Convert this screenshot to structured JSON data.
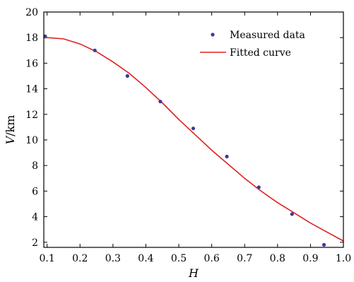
{
  "chart_data": {
    "type": "scatter",
    "xlabel_var": "H",
    "ylabel_var": "V",
    "ylabel_unit": "/km",
    "xlim": [
      0.09,
      1.0
    ],
    "ylim": [
      1.6,
      20
    ],
    "xticks": [
      0.1,
      0.2,
      0.3,
      0.4,
      0.5,
      0.6,
      0.7,
      0.8,
      0.9,
      1.0
    ],
    "xtick_labels": [
      "0.1",
      "0.2",
      "0.3",
      "0.4",
      "0.5",
      "0.6",
      "0.7",
      "0.8",
      "0.9",
      "1.0"
    ],
    "yticks": [
      2,
      4,
      6,
      8,
      10,
      12,
      14,
      16,
      18,
      20
    ],
    "ytick_labels": [
      "2",
      "4",
      "6",
      "8",
      "10",
      "12",
      "14",
      "16",
      "18",
      "20"
    ],
    "grid": false,
    "legend_position": "top-right",
    "series": [
      {
        "name": "Measured data",
        "kind": "scatter",
        "color": "#3b3b9a",
        "points": [
          {
            "x": 0.094,
            "y": 18.1
          },
          {
            "x": 0.245,
            "y": 17.0
          },
          {
            "x": 0.344,
            "y": 15.0
          },
          {
            "x": 0.444,
            "y": 13.0
          },
          {
            "x": 0.544,
            "y": 10.9
          },
          {
            "x": 0.646,
            "y": 8.7
          },
          {
            "x": 0.743,
            "y": 6.3
          },
          {
            "x": 0.844,
            "y": 4.2
          },
          {
            "x": 0.941,
            "y": 1.8
          }
        ]
      },
      {
        "name": "Fitted curve",
        "kind": "line",
        "color": "#e02020",
        "points": [
          {
            "x": 0.09,
            "y": 17.98
          },
          {
            "x": 0.1,
            "y": 18.0
          },
          {
            "x": 0.15,
            "y": 17.9
          },
          {
            "x": 0.2,
            "y": 17.5
          },
          {
            "x": 0.25,
            "y": 16.9
          },
          {
            "x": 0.3,
            "y": 16.1
          },
          {
            "x": 0.35,
            "y": 15.2
          },
          {
            "x": 0.4,
            "y": 14.1
          },
          {
            "x": 0.45,
            "y": 12.9
          },
          {
            "x": 0.5,
            "y": 11.6
          },
          {
            "x": 0.55,
            "y": 10.4
          },
          {
            "x": 0.6,
            "y": 9.2
          },
          {
            "x": 0.65,
            "y": 8.1
          },
          {
            "x": 0.7,
            "y": 7.0
          },
          {
            "x": 0.75,
            "y": 6.0
          },
          {
            "x": 0.8,
            "y": 5.1
          },
          {
            "x": 0.85,
            "y": 4.3
          },
          {
            "x": 0.9,
            "y": 3.5
          },
          {
            "x": 0.95,
            "y": 2.8
          },
          {
            "x": 1.0,
            "y": 2.1
          }
        ]
      }
    ]
  }
}
